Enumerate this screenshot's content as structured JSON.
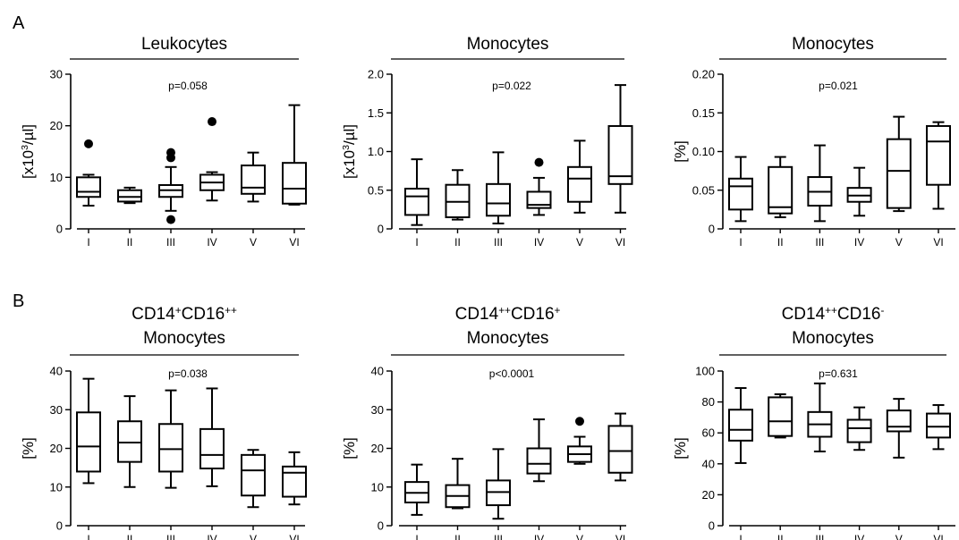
{
  "figure": {
    "panel_labels": [
      "A",
      "B"
    ]
  },
  "chart_data": [
    {
      "type": "box",
      "row": 0,
      "col": 0,
      "title": [
        "Leukocytes"
      ],
      "ylabel_parts": [
        {
          "t": "[x10"
        },
        {
          "t": "3",
          "sup": true
        },
        {
          "t": "/µl]"
        }
      ],
      "pvalue": "p=0.058",
      "ylim": [
        0,
        30
      ],
      "yticks": [
        0,
        10,
        20,
        30
      ],
      "ytick_labels": [
        "0",
        "10",
        "20",
        "30"
      ],
      "categories": [
        "I",
        "II",
        "III",
        "IV",
        "V",
        "VI"
      ],
      "boxes": [
        {
          "min": 4.5,
          "q1": 6.2,
          "median": 7.2,
          "q3": 10.0,
          "max": 10.5,
          "outliers": [
            16.5
          ]
        },
        {
          "min": 5.0,
          "q1": 5.3,
          "median": 6.2,
          "q3": 7.5,
          "max": 8.0,
          "outliers": []
        },
        {
          "min": 3.5,
          "q1": 6.2,
          "median": 7.5,
          "q3": 8.5,
          "max": 12.0,
          "outliers": [
            1.8,
            14.8,
            13.8
          ]
        },
        {
          "min": 5.5,
          "q1": 7.5,
          "median": 9.0,
          "q3": 10.5,
          "max": 11.0,
          "outliers": [
            20.8
          ]
        },
        {
          "min": 5.3,
          "q1": 6.8,
          "median": 8.0,
          "q3": 12.3,
          "max": 14.8,
          "outliers": []
        },
        {
          "min": 4.7,
          "q1": 4.9,
          "median": 7.8,
          "q3": 12.8,
          "max": 24.0,
          "outliers": []
        }
      ]
    },
    {
      "type": "box",
      "row": 0,
      "col": 1,
      "title": [
        "Monocytes"
      ],
      "ylabel_parts": [
        {
          "t": "[x10"
        },
        {
          "t": "3",
          "sup": true
        },
        {
          "t": "/µl]"
        }
      ],
      "pvalue": "p=0.022",
      "ylim": [
        0,
        2.0
      ],
      "yticks": [
        0,
        0.5,
        1.0,
        1.5,
        2.0
      ],
      "ytick_labels": [
        "0",
        "0.5",
        "1.0",
        "1.5",
        "2.0"
      ],
      "categories": [
        "I",
        "II",
        "III",
        "IV",
        "V",
        "VI"
      ],
      "boxes": [
        {
          "min": 0.05,
          "q1": 0.18,
          "median": 0.42,
          "q3": 0.52,
          "max": 0.9,
          "outliers": []
        },
        {
          "min": 0.12,
          "q1": 0.15,
          "median": 0.35,
          "q3": 0.57,
          "max": 0.76,
          "outliers": []
        },
        {
          "min": 0.07,
          "q1": 0.17,
          "median": 0.33,
          "q3": 0.58,
          "max": 0.99,
          "outliers": []
        },
        {
          "min": 0.18,
          "q1": 0.27,
          "median": 0.31,
          "q3": 0.48,
          "max": 0.66,
          "outliers": [
            0.86
          ]
        },
        {
          "min": 0.21,
          "q1": 0.35,
          "median": 0.65,
          "q3": 0.8,
          "max": 1.14,
          "outliers": []
        },
        {
          "min": 0.21,
          "q1": 0.58,
          "median": 0.68,
          "q3": 1.33,
          "max": 1.86,
          "outliers": []
        }
      ]
    },
    {
      "type": "box",
      "row": 0,
      "col": 2,
      "title": [
        "Monocytes"
      ],
      "ylabel_parts": [
        {
          "t": "[%]"
        }
      ],
      "pvalue": "p=0.021",
      "ylim": [
        0,
        0.2
      ],
      "yticks": [
        0,
        0.05,
        0.1,
        0.15,
        0.2
      ],
      "ytick_labels": [
        "0",
        "0.05",
        "0.10",
        "0.15",
        "0.20"
      ],
      "categories": [
        "I",
        "II",
        "III",
        "IV",
        "V",
        "VI"
      ],
      "boxes": [
        {
          "min": 0.01,
          "q1": 0.025,
          "median": 0.055,
          "q3": 0.065,
          "max": 0.093,
          "outliers": []
        },
        {
          "min": 0.015,
          "q1": 0.02,
          "median": 0.028,
          "q3": 0.08,
          "max": 0.093,
          "outliers": []
        },
        {
          "min": 0.01,
          "q1": 0.03,
          "median": 0.048,
          "q3": 0.067,
          "max": 0.108,
          "outliers": []
        },
        {
          "min": 0.017,
          "q1": 0.035,
          "median": 0.043,
          "q3": 0.053,
          "max": 0.079,
          "outliers": []
        },
        {
          "min": 0.023,
          "q1": 0.027,
          "median": 0.075,
          "q3": 0.116,
          "max": 0.145,
          "outliers": []
        },
        {
          "min": 0.026,
          "q1": 0.057,
          "median": 0.113,
          "q3": 0.133,
          "max": 0.138,
          "outliers": []
        }
      ]
    },
    {
      "type": "box",
      "row": 1,
      "col": 0,
      "title_parts": [
        [
          {
            "t": "CD14"
          },
          {
            "t": "+",
            "sup": true
          },
          {
            "t": "CD16"
          },
          {
            "t": "++",
            "sup": true
          }
        ],
        [
          {
            "t": "Monocytes"
          }
        ]
      ],
      "ylabel_parts": [
        {
          "t": "[%]"
        }
      ],
      "pvalue": "p=0.038",
      "ylim": [
        0,
        40
      ],
      "yticks": [
        0,
        10,
        20,
        30,
        40
      ],
      "ytick_labels": [
        "0",
        "10",
        "20",
        "30",
        "40"
      ],
      "categories": [
        "I",
        "II",
        "III",
        "IV",
        "V",
        "VI"
      ],
      "boxes": [
        {
          "min": 11.0,
          "q1": 14.0,
          "median": 20.5,
          "q3": 29.3,
          "max": 38.0,
          "outliers": []
        },
        {
          "min": 10.0,
          "q1": 16.5,
          "median": 21.5,
          "q3": 27.0,
          "max": 33.5,
          "outliers": []
        },
        {
          "min": 9.8,
          "q1": 14.0,
          "median": 19.8,
          "q3": 26.3,
          "max": 35.0,
          "outliers": []
        },
        {
          "min": 10.2,
          "q1": 14.8,
          "median": 18.3,
          "q3": 25.0,
          "max": 35.5,
          "outliers": []
        },
        {
          "min": 4.8,
          "q1": 7.8,
          "median": 14.3,
          "q3": 18.3,
          "max": 19.6,
          "outliers": []
        },
        {
          "min": 5.5,
          "q1": 7.5,
          "median": 13.7,
          "q3": 15.3,
          "max": 19.0,
          "outliers": []
        }
      ]
    },
    {
      "type": "box",
      "row": 1,
      "col": 1,
      "title_parts": [
        [
          {
            "t": "CD14"
          },
          {
            "t": "++",
            "sup": true
          },
          {
            "t": "CD16"
          },
          {
            "t": "+",
            "sup": true
          }
        ],
        [
          {
            "t": "Monocytes"
          }
        ]
      ],
      "ylabel_parts": [
        {
          "t": "[%]"
        }
      ],
      "pvalue": "p<0.0001",
      "ylim": [
        0,
        40
      ],
      "yticks": [
        0,
        10,
        20,
        30,
        40
      ],
      "ytick_labels": [
        "0",
        "10",
        "20",
        "30",
        "40"
      ],
      "categories": [
        "I",
        "II",
        "III",
        "IV",
        "V",
        "VI"
      ],
      "boxes": [
        {
          "min": 2.8,
          "q1": 6.0,
          "median": 8.5,
          "q3": 11.3,
          "max": 15.8,
          "outliers": []
        },
        {
          "min": 4.5,
          "q1": 4.8,
          "median": 7.7,
          "q3": 10.5,
          "max": 17.3,
          "outliers": []
        },
        {
          "min": 1.8,
          "q1": 5.3,
          "median": 8.7,
          "q3": 11.7,
          "max": 19.8,
          "outliers": []
        },
        {
          "min": 11.5,
          "q1": 13.5,
          "median": 16.0,
          "q3": 20.0,
          "max": 27.5,
          "outliers": []
        },
        {
          "min": 16.0,
          "q1": 16.5,
          "median": 18.5,
          "q3": 20.5,
          "max": 23.0,
          "outliers": [
            27.0
          ]
        },
        {
          "min": 11.7,
          "q1": 13.7,
          "median": 19.3,
          "q3": 25.8,
          "max": 29.0,
          "outliers": []
        }
      ]
    },
    {
      "type": "box",
      "row": 1,
      "col": 2,
      "title_parts": [
        [
          {
            "t": "CD14"
          },
          {
            "t": "++",
            "sup": true
          },
          {
            "t": "CD16"
          },
          {
            "t": "-",
            "sup": true
          }
        ],
        [
          {
            "t": "Monocytes"
          }
        ]
      ],
      "ylabel_parts": [
        {
          "t": "[%]"
        }
      ],
      "pvalue": "p=0.631",
      "ylim": [
        0,
        100
      ],
      "yticks": [
        0,
        20,
        40,
        60,
        80,
        100
      ],
      "ytick_labels": [
        "0",
        "20",
        "40",
        "60",
        "80",
        "100"
      ],
      "categories": [
        "I",
        "II",
        "III",
        "IV",
        "V",
        "VI"
      ],
      "boxes": [
        {
          "min": 40.5,
          "q1": 55.0,
          "median": 62.0,
          "q3": 75.0,
          "max": 89.0,
          "outliers": []
        },
        {
          "min": 57.0,
          "q1": 58.0,
          "median": 67.5,
          "q3": 83.0,
          "max": 85.0,
          "outliers": []
        },
        {
          "min": 48.0,
          "q1": 57.5,
          "median": 65.5,
          "q3": 73.5,
          "max": 92.0,
          "outliers": []
        },
        {
          "min": 49.0,
          "q1": 54.0,
          "median": 63.0,
          "q3": 68.5,
          "max": 76.5,
          "outliers": []
        },
        {
          "min": 44.0,
          "q1": 61.0,
          "median": 64.0,
          "q3": 74.5,
          "max": 82.0,
          "outliers": []
        },
        {
          "min": 49.5,
          "q1": 57.0,
          "median": 64.0,
          "q3": 72.5,
          "max": 78.0,
          "outliers": []
        }
      ]
    }
  ]
}
